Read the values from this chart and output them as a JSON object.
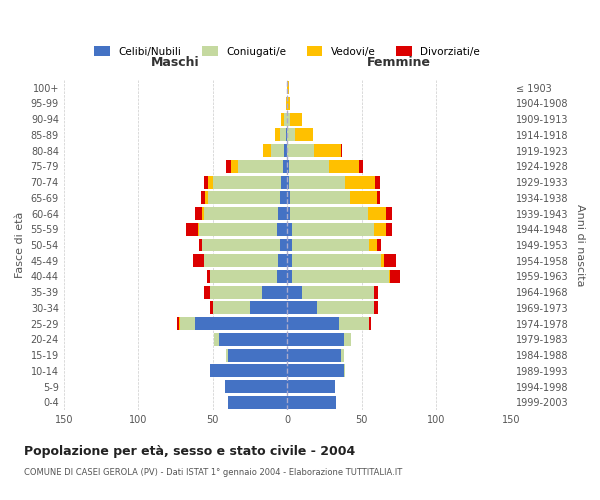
{
  "age_groups": [
    "0-4",
    "5-9",
    "10-14",
    "15-19",
    "20-24",
    "25-29",
    "30-34",
    "35-39",
    "40-44",
    "45-49",
    "50-54",
    "55-59",
    "60-64",
    "65-69",
    "70-74",
    "75-79",
    "80-84",
    "85-89",
    "90-94",
    "95-99",
    "100+"
  ],
  "birth_years": [
    "1999-2003",
    "1994-1998",
    "1989-1993",
    "1984-1988",
    "1979-1983",
    "1974-1978",
    "1969-1973",
    "1964-1968",
    "1959-1963",
    "1954-1958",
    "1949-1953",
    "1944-1948",
    "1939-1943",
    "1934-1938",
    "1929-1933",
    "1924-1928",
    "1919-1923",
    "1914-1918",
    "1909-1913",
    "1904-1908",
    "≤ 1903"
  ],
  "maschi_celibi": [
    40,
    42,
    52,
    40,
    46,
    62,
    25,
    17,
    7,
    6,
    5,
    7,
    6,
    5,
    4,
    3,
    2,
    1,
    0,
    0,
    0
  ],
  "maschi_coniugati": [
    0,
    0,
    0,
    1,
    3,
    10,
    25,
    35,
    45,
    50,
    52,
    52,
    50,
    48,
    46,
    30,
    9,
    4,
    2,
    0,
    0
  ],
  "maschi_vedovi": [
    0,
    0,
    0,
    0,
    0,
    1,
    0,
    0,
    0,
    0,
    0,
    1,
    1,
    2,
    3,
    5,
    5,
    3,
    2,
    1,
    0
  ],
  "maschi_divorziati": [
    0,
    0,
    0,
    0,
    0,
    1,
    2,
    4,
    2,
    7,
    2,
    8,
    5,
    3,
    3,
    3,
    0,
    0,
    0,
    0,
    0
  ],
  "femmine_nubili": [
    33,
    32,
    38,
    36,
    38,
    35,
    20,
    10,
    3,
    3,
    3,
    3,
    2,
    2,
    1,
    1,
    0,
    0,
    0,
    0,
    0
  ],
  "femmine_coniugate": [
    0,
    0,
    1,
    2,
    5,
    20,
    38,
    48,
    65,
    60,
    52,
    55,
    52,
    40,
    38,
    27,
    18,
    5,
    2,
    0,
    0
  ],
  "femmine_vedove": [
    0,
    0,
    0,
    0,
    0,
    0,
    0,
    0,
    1,
    2,
    5,
    8,
    12,
    18,
    20,
    20,
    18,
    12,
    8,
    2,
    1
  ],
  "femmine_divorziate": [
    0,
    0,
    0,
    0,
    0,
    1,
    3,
    3,
    7,
    8,
    3,
    4,
    4,
    2,
    3,
    3,
    1,
    0,
    0,
    0,
    0
  ],
  "color_celibi": "#4472c4",
  "color_coniugati": "#c5d9a0",
  "color_vedovi": "#ffc000",
  "color_divorziati": "#dc0000",
  "title": "Popolazione per età, sesso e stato civile - 2004",
  "subtitle": "COMUNE DI CASEI GEROLA (PV) - Dati ISTAT 1° gennaio 2004 - Elaborazione TUTTITALIA.IT",
  "ylabel_left": "Fasce di età",
  "ylabel_right": "Anni di nascita",
  "label_maschi": "Maschi",
  "label_femmine": "Femmine",
  "legend_celibi": "Celibi/Nubili",
  "legend_coniugati": "Coniugati/e",
  "legend_vedovi": "Vedovi/e",
  "legend_divorziati": "Divorziati/e",
  "xlim": 150,
  "bg_color": "#ffffff",
  "grid_color": "#cccccc",
  "bar_height": 0.82
}
